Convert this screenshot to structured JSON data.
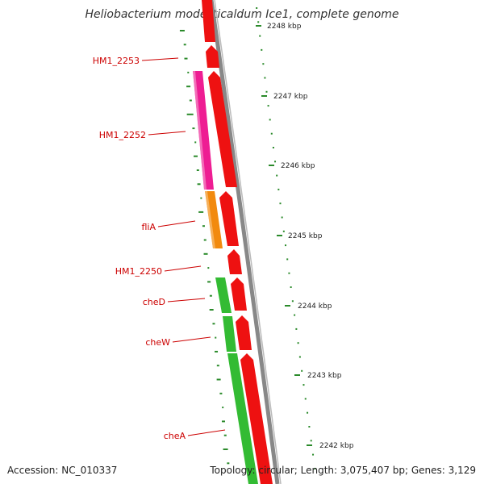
{
  "title": "Heliobacterium modesticaldum Ice1, complete genome",
  "footer": {
    "accession": "Accession: NC_010337",
    "topology": "Topology: circular; Length: 3,075,407 bp; Genes: 3,129"
  },
  "colors": {
    "forward_gene": "#ee1111",
    "hm1_2252": "#ee1d93",
    "flia": "#f28a0e",
    "che": "#33bb33",
    "backbone": "#888888",
    "gc_marks": "#2a8a2a",
    "label": "#cc0000"
  },
  "genes": [
    {
      "label": "HM1_2253"
    },
    {
      "label": "HM1_2252"
    },
    {
      "label": "fliA"
    },
    {
      "label": "HM1_2250"
    },
    {
      "label": "cheD"
    },
    {
      "label": "cheW"
    },
    {
      "label": "cheA"
    }
  ],
  "ticks": [
    {
      "label": "2248 kbp"
    },
    {
      "label": "2247 kbp"
    },
    {
      "label": "2246 kbp"
    },
    {
      "label": "2245 kbp"
    },
    {
      "label": "2244 kbp"
    },
    {
      "label": "2243 kbp"
    },
    {
      "label": "2242 kbp"
    }
  ]
}
